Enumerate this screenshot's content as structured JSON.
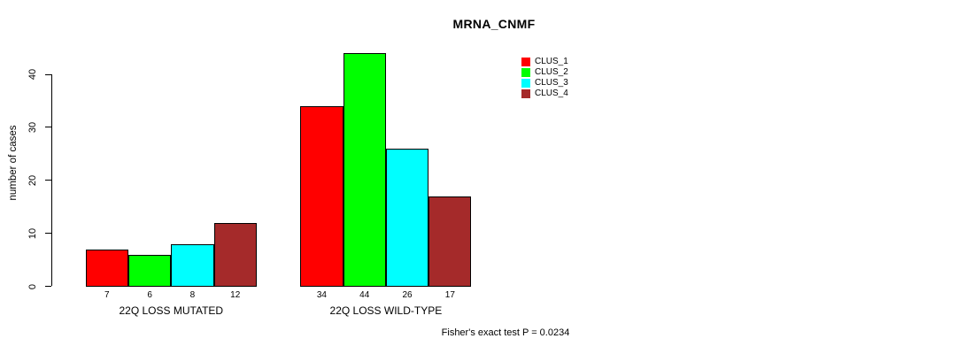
{
  "figure": {
    "title": "MRNA_CNMF",
    "ylabel": "number of cases",
    "footnote": "Fisher's exact test P = 0.0234"
  },
  "chart_data": {
    "type": "bar",
    "title": "MRNA_CNMF",
    "xlabel": "",
    "ylabel": "number of cases",
    "categories": [
      "22Q LOSS MUTATED",
      "22Q LOSS WILD-TYPE"
    ],
    "series": [
      {
        "name": "CLUS_1",
        "color": "#ff0000",
        "values": [
          7,
          34
        ]
      },
      {
        "name": "CLUS_2",
        "color": "#00ff00",
        "values": [
          6,
          44
        ]
      },
      {
        "name": "CLUS_3",
        "color": "#00ffff",
        "values": [
          8,
          26
        ]
      },
      {
        "name": "CLUS_4",
        "color": "#a52a2a",
        "values": [
          12,
          17
        ]
      }
    ],
    "yticks": [
      0,
      10,
      20,
      30,
      40
    ],
    "ylim": [
      0,
      44
    ],
    "grid": false,
    "bar_borders": "#000000",
    "legend_position": "top-right",
    "legend_entries": [
      "CLUS_1",
      "CLUS_2",
      "CLUS_3",
      "CLUS_4"
    ],
    "annotation": "Fisher's exact test P = 0.0234"
  }
}
